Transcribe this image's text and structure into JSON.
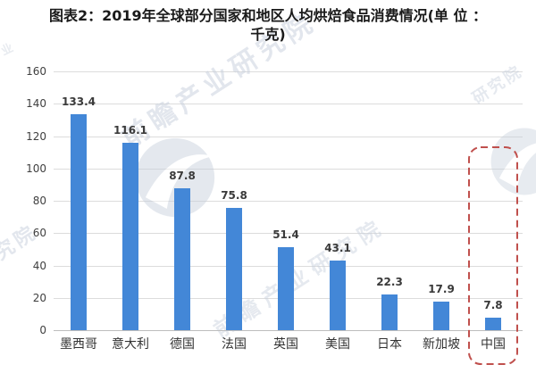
{
  "title": {
    "line1": "图表2：2019年全球部分国家和地区人均烘焙食品消费情况(单 位 ：",
    "line2": "千克)"
  },
  "watermark": {
    "text": "前瞻产业研究院",
    "fragment_short": "研究院",
    "fragment_tiny": "产业",
    "text_color": "#c7cfdc",
    "logo_color": "#c5cedb"
  },
  "colors": {
    "bar": "#4387d7",
    "gridline": "#dcdcdc",
    "axisline": "#bdbdbd",
    "tick_label": "#404040",
    "value_label": "#3a3a3a",
    "category_label": "#333333",
    "title": "#1a1a1a",
    "highlight_box": "#c0504d"
  },
  "chart_data": {
    "type": "bar",
    "title": "图表2：2019年全球部分国家和地区人均烘焙食品消费情况(单位：千克)",
    "unit": "千克",
    "categories": [
      "墨西哥",
      "意大利",
      "德国",
      "法国",
      "英国",
      "美国",
      "日本",
      "新加坡",
      "中国"
    ],
    "values": [
      133.4,
      116.1,
      87.8,
      75.8,
      51.4,
      43.1,
      22.3,
      17.9,
      7.8
    ],
    "xlabel": "",
    "ylabel": "",
    "ylim": [
      0,
      160
    ],
    "yticks": [
      0,
      20,
      40,
      60,
      80,
      100,
      120,
      140,
      160
    ],
    "grid": true,
    "legend_position": "none",
    "highlight_category": "中国"
  }
}
